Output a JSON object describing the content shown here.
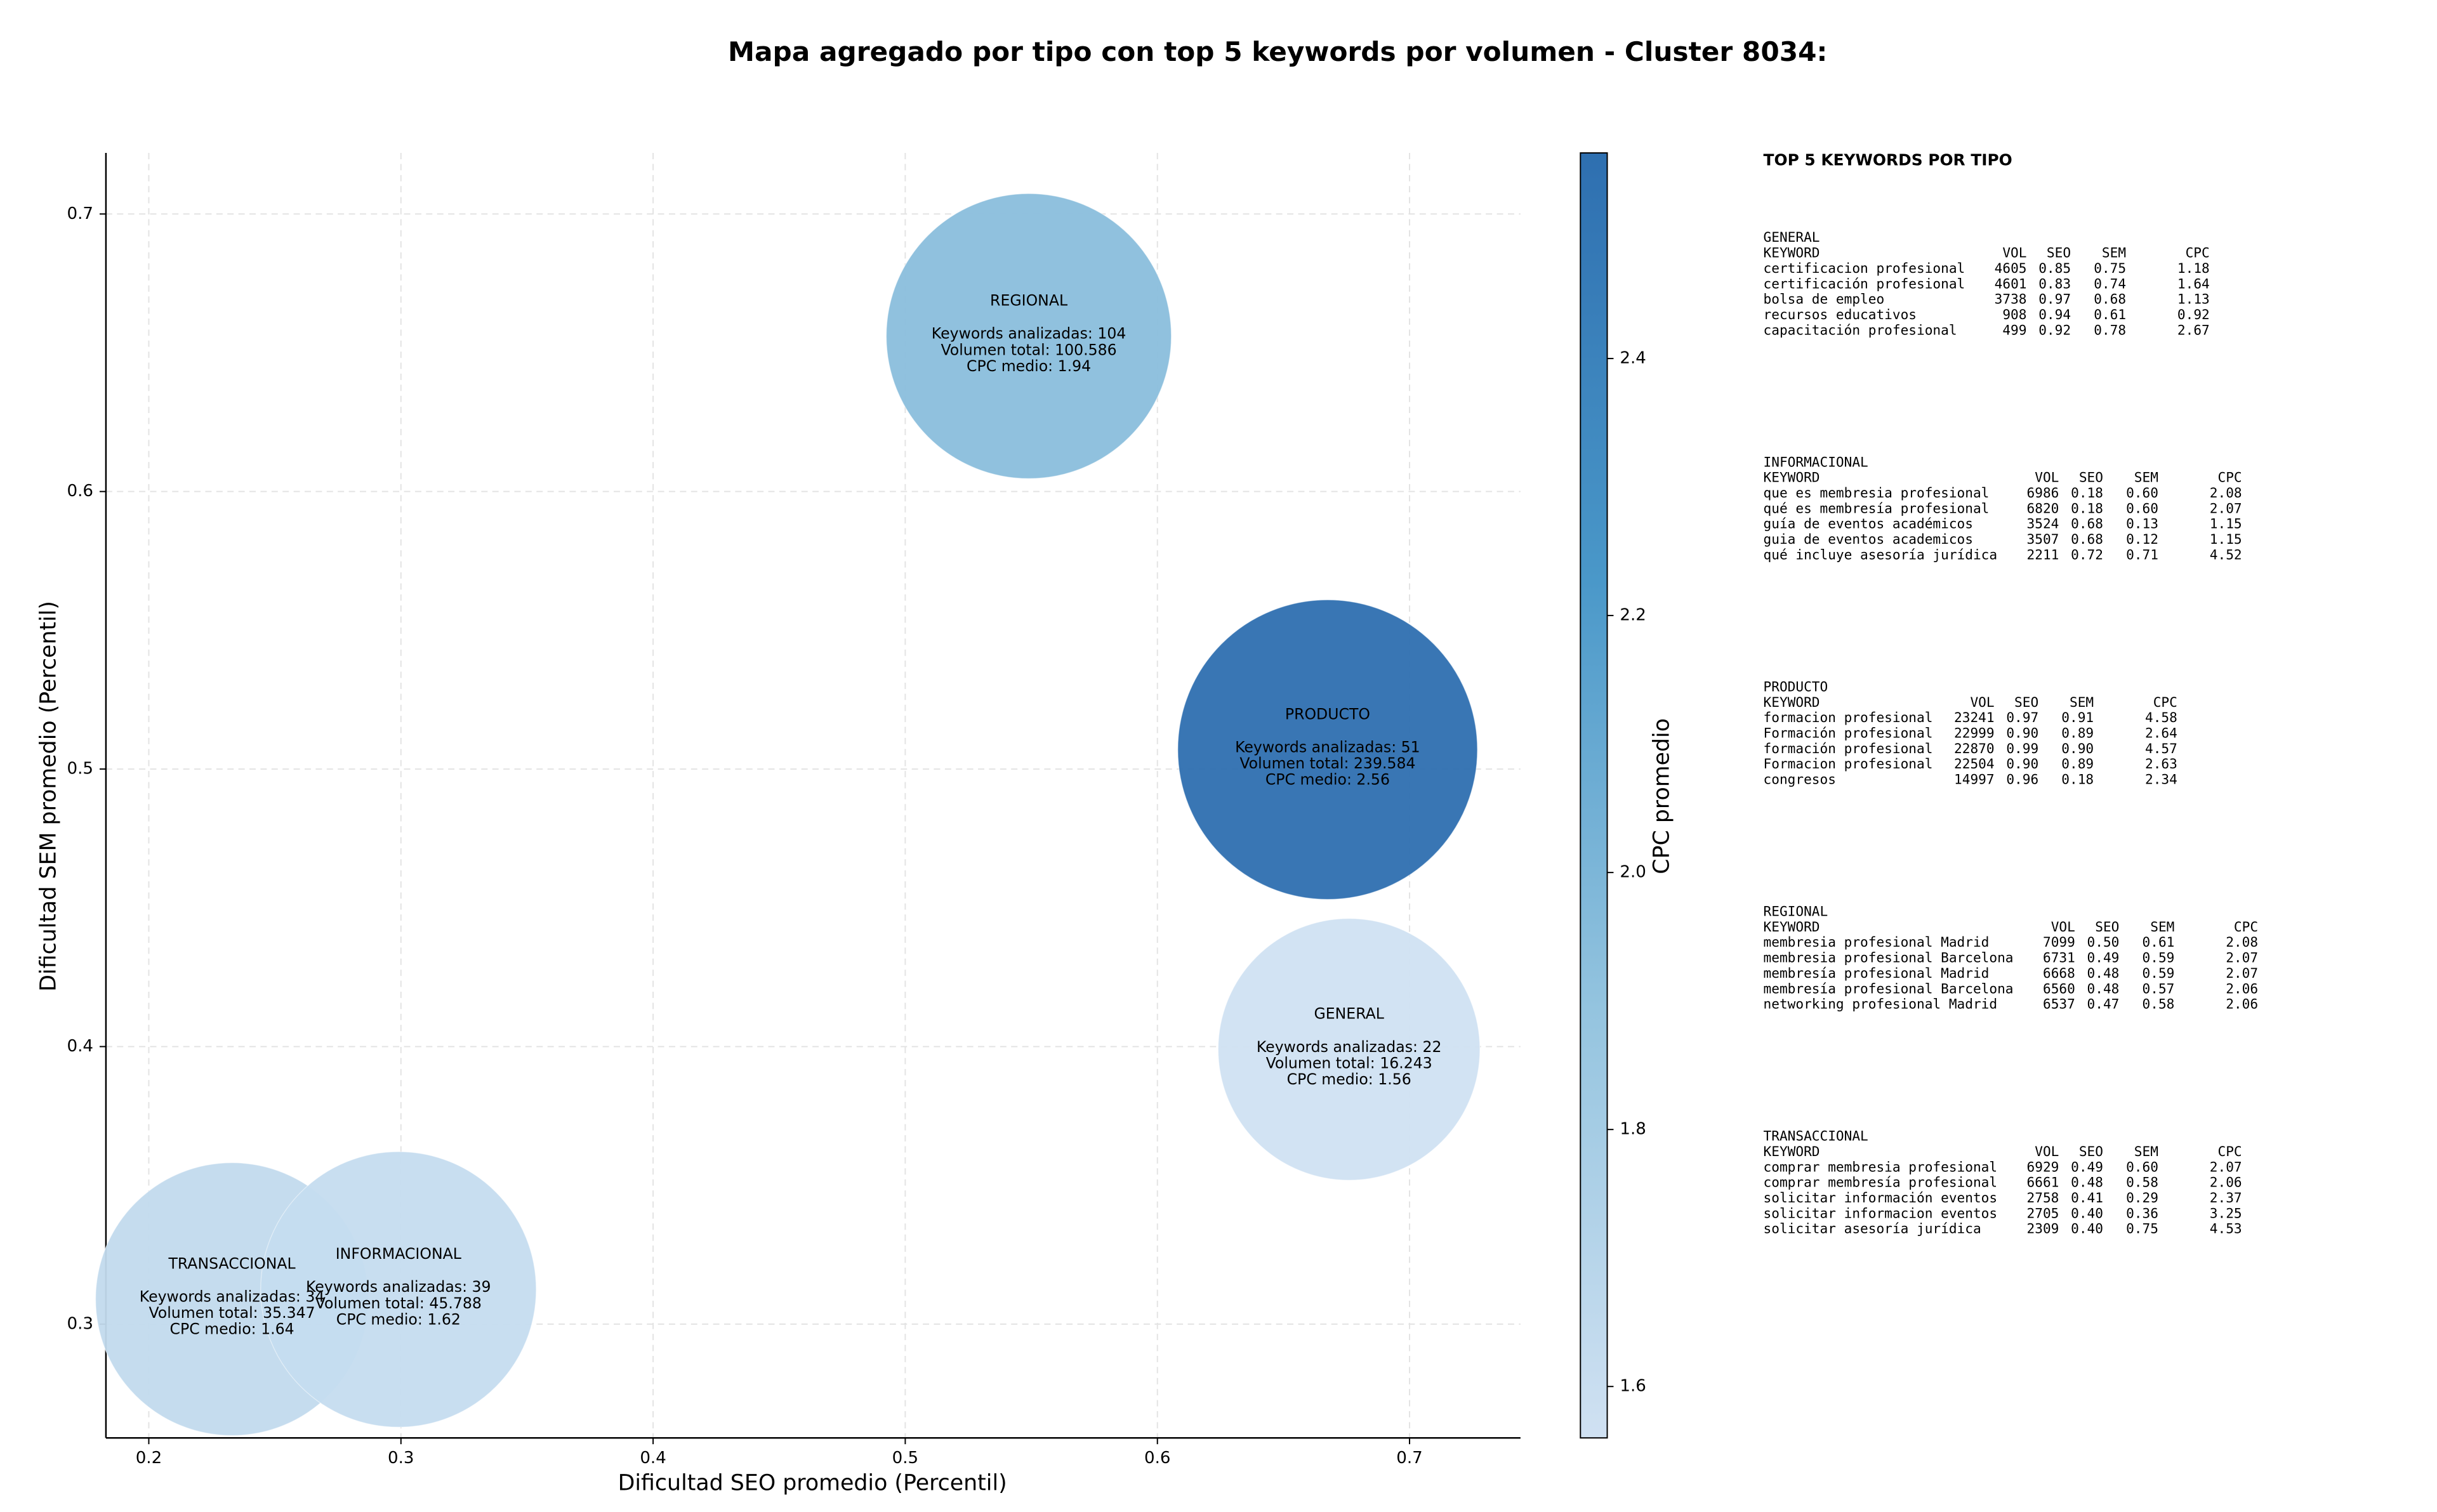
{
  "chart_data": {
    "type": "bubble",
    "title": "Mapa agregado por tipo con top 5 keywords por volumen - Cluster 8034:",
    "x_label": "Dificultad SEO promedio (Percentil)",
    "y_label": "Dificultad SEM promedio (Percentil)",
    "xlim": [
      0.183,
      0.744
    ],
    "ylim": [
      0.259,
      0.722
    ],
    "xticks": [
      0.2,
      0.3,
      0.4,
      0.5,
      0.6,
      0.7
    ],
    "yticks": [
      0.3,
      0.4,
      0.5,
      0.6,
      0.7
    ],
    "grid": true,
    "colorbar": {
      "label": "CPC promedio",
      "lim": [
        1.56,
        2.56
      ],
      "ticks": [
        1.6,
        1.8,
        {
          "value": 2,
          "label": "2.0"
        },
        2.2,
        2.4
      ],
      "colormap": [
        "#d0e1f2",
        "#94c4df",
        "#4a98c9",
        "#2e6fb0"
      ]
    },
    "bubbles": [
      {
        "name": "PRODUCTO",
        "x": 0.6675,
        "y": 0.507,
        "volume": 239584,
        "cpc": 2.56,
        "lines": [
          "Keywords analizadas: 51",
          "Volumen total: 239.584",
          "CPC medio: 2.56"
        ]
      },
      {
        "name": "REGIONAL",
        "x": 0.549,
        "y": 0.656,
        "volume": 100586,
        "cpc": 1.94,
        "lines": [
          "Keywords analizadas: 104",
          "Volumen total: 100.586",
          "CPC medio: 1.94"
        ]
      },
      {
        "name": "GENERAL",
        "x": 0.676,
        "y": 0.399,
        "volume": 16243,
        "cpc": 1.56,
        "lines": [
          "Keywords analizadas: 22",
          "Volumen total: 16.243",
          "CPC medio: 1.56"
        ]
      },
      {
        "name": "TRANSACCIONAL",
        "x": 0.233,
        "y": 0.309,
        "volume": 35347,
        "cpc": 1.64,
        "lines": [
          "Keywords analizadas: 34",
          "Volumen total: 35.347",
          "CPC medio: 1.64"
        ]
      },
      {
        "name": "INFORMACIONAL",
        "x": 0.299,
        "y": 0.3125,
        "volume": 45788,
        "cpc": 1.62,
        "lines": [
          "Keywords analizadas: 39",
          "Volumen total: 45.788",
          "CPC medio: 1.62"
        ]
      }
    ]
  },
  "keyword_tables": {
    "title": "TOP 5 KEYWORDS POR TIPO",
    "groups": [
      {
        "name": "GENERAL",
        "columns": [
          "KEYWORD",
          "VOL",
          "SEO",
          "SEM",
          "CPC"
        ],
        "rows": [
          [
            "certificacion profesional",
            "4605",
            "0.85",
            "0.75",
            "1.18"
          ],
          [
            "certificación profesional",
            "4601",
            "0.83",
            "0.74",
            "1.64"
          ],
          [
            "bolsa de empleo",
            "3738",
            "0.97",
            "0.68",
            "1.13"
          ],
          [
            "recursos educativos",
            "908",
            "0.94",
            "0.61",
            "0.92"
          ],
          [
            "capacitación profesional",
            "499",
            "0.92",
            "0.78",
            "2.67"
          ]
        ]
      },
      {
        "name": "INFORMACIONAL",
        "columns": [
          "KEYWORD",
          "VOL",
          "SEO",
          "SEM",
          "CPC"
        ],
        "rows": [
          [
            "que es membresia profesional",
            "6986",
            "0.18",
            "0.60",
            "2.08"
          ],
          [
            "qué es membresía profesional",
            "6820",
            "0.18",
            "0.60",
            "2.07"
          ],
          [
            "guía de eventos académicos",
            "3524",
            "0.68",
            "0.13",
            "1.15"
          ],
          [
            "guia de eventos academicos",
            "3507",
            "0.68",
            "0.12",
            "1.15"
          ],
          [
            "qué incluye asesoría jurídica",
            "2211",
            "0.72",
            "0.71",
            "4.52"
          ]
        ]
      },
      {
        "name": "PRODUCTO",
        "columns": [
          "KEYWORD",
          "VOL",
          "SEO",
          "SEM",
          "CPC"
        ],
        "rows": [
          [
            "formacion profesional",
            "23241",
            "0.97",
            "0.91",
            "4.58"
          ],
          [
            "Formación profesional",
            "22999",
            "0.90",
            "0.89",
            "2.64"
          ],
          [
            "formación profesional",
            "22870",
            "0.99",
            "0.90",
            "4.57"
          ],
          [
            "Formacion profesional",
            "22504",
            "0.90",
            "0.89",
            "2.63"
          ],
          [
            "congresos",
            "14997",
            "0.96",
            "0.18",
            "2.34"
          ]
        ]
      },
      {
        "name": "REGIONAL",
        "columns": [
          "KEYWORD",
          "VOL",
          "SEO",
          "SEM",
          "CPC"
        ],
        "rows": [
          [
            "membresia profesional Madrid",
            "7099",
            "0.50",
            "0.61",
            "2.08"
          ],
          [
            "membresia profesional Barcelona",
            "6731",
            "0.49",
            "0.59",
            "2.07"
          ],
          [
            "membresía profesional Madrid",
            "6668",
            "0.48",
            "0.59",
            "2.07"
          ],
          [
            "membresía profesional Barcelona",
            "6560",
            "0.48",
            "0.57",
            "2.06"
          ],
          [
            "networking profesional Madrid",
            "6537",
            "0.47",
            "0.58",
            "2.06"
          ]
        ]
      },
      {
        "name": "TRANSACCIONAL",
        "columns": [
          "KEYWORD",
          "VOL",
          "SEO",
          "SEM",
          "CPC"
        ],
        "rows": [
          [
            "comprar membresia profesional",
            "6929",
            "0.49",
            "0.60",
            "2.07"
          ],
          [
            "comprar membresía profesional",
            "6661",
            "0.48",
            "0.58",
            "2.06"
          ],
          [
            "solicitar información eventos",
            "2758",
            "0.41",
            "0.29",
            "2.37"
          ],
          [
            "solicitar informacion eventos",
            "2705",
            "0.40",
            "0.36",
            "3.25"
          ],
          [
            "solicitar asesoría jurídica",
            "2309",
            "0.40",
            "0.75",
            "4.53"
          ]
        ]
      }
    ]
  }
}
